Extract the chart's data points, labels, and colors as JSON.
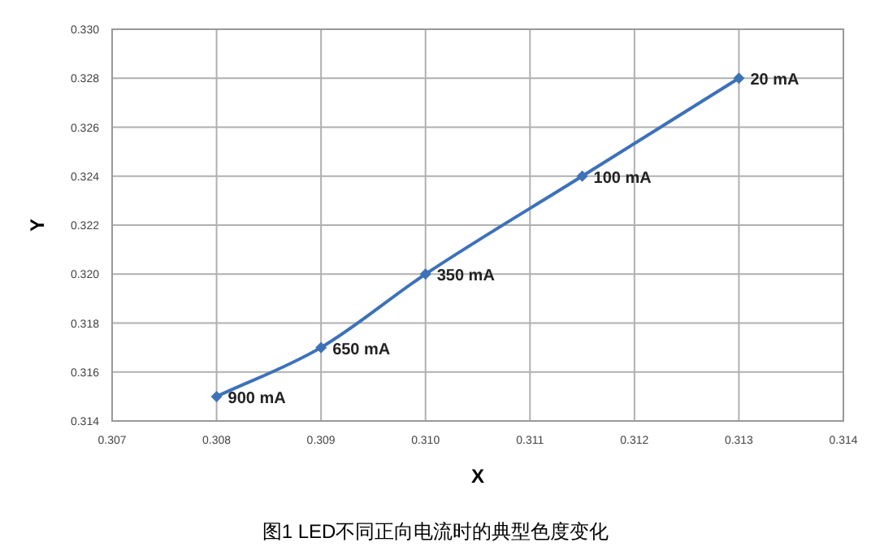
{
  "chart_data": {
    "type": "line",
    "xlabel": "X",
    "ylabel": "Y",
    "title": "图1 LED不同正向电流时的典型色度变化",
    "x": [
      0.308,
      0.309,
      0.31,
      0.3115,
      0.313
    ],
    "series": [
      {
        "color": "#3d72b8",
        "values": [
          0.315,
          0.317,
          0.32,
          0.324,
          0.328
        ]
      }
    ],
    "xlim": [
      0.307,
      0.314
    ],
    "xticks": [
      0.307,
      0.308,
      0.309,
      {
        "value": 0.31,
        "label": "0.310"
      },
      0.311,
      0.312,
      0.313,
      0.314
    ],
    "ylim": [
      0.314,
      0.33
    ],
    "yticks": [
      0.314,
      0.316,
      0.318,
      {
        "value": 0.32,
        "label": "0.320"
      },
      0.322,
      0.324,
      0.326,
      0.328,
      {
        "value": 0.33,
        "label": "0.330"
      }
    ],
    "grid": true,
    "marker": "diamond",
    "line_style": "solid",
    "annotations": [
      {
        "text": "900 mA",
        "x": 0.308,
        "y": 0.315
      },
      {
        "text": "650 mA",
        "x": 0.309,
        "y": 0.317
      },
      {
        "text": "350 mA",
        "x": 0.31,
        "y": 0.32
      },
      {
        "text": "100 mA",
        "x": 0.3115,
        "y": 0.324
      },
      {
        "text": "20 mA",
        "x": 0.313,
        "y": 0.328
      }
    ]
  }
}
